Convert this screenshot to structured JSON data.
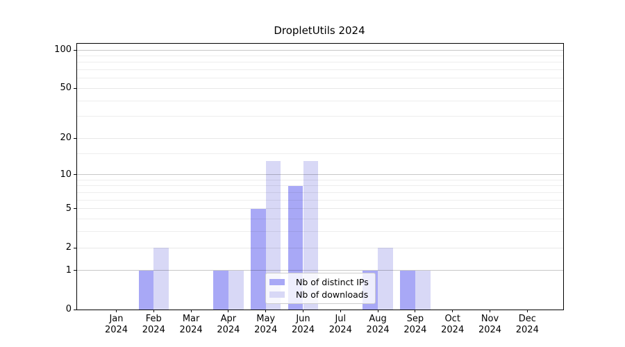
{
  "chart_data": {
    "type": "bar",
    "title": "DropletUtils 2024",
    "categories": [
      "Jan 2024",
      "Feb 2024",
      "Mar 2024",
      "Apr 2024",
      "May 2024",
      "Jun 2024",
      "Jul 2024",
      "Aug 2024",
      "Sep 2024",
      "Oct 2024",
      "Nov 2024",
      "Dec 2024"
    ],
    "series": [
      {
        "key": "distinct-ips",
        "name": "Nb of distinct IPs",
        "color": "#a8a8f6",
        "values": [
          0,
          1,
          0,
          1,
          5,
          8,
          0,
          1,
          1,
          0,
          0,
          0
        ]
      },
      {
        "key": "downloads",
        "name": "Nb of downloads",
        "color": "#d8d8f6",
        "values": [
          0,
          2,
          0,
          1,
          13,
          13,
          0,
          2,
          1,
          0,
          0,
          0
        ]
      }
    ],
    "xlabel": "",
    "ylabel": "",
    "y_axis": {
      "scale": "log1p",
      "tick_labels": [
        0,
        1,
        2,
        5,
        10,
        20,
        50,
        100
      ],
      "minor_gridlines": [
        3,
        4,
        6,
        7,
        8,
        9,
        15,
        30,
        40,
        60,
        70,
        80,
        90
      ],
      "emphasized_gridlines": [
        1,
        10,
        100
      ],
      "min": 0,
      "max": 111
    },
    "legend": {
      "position": "lower-center"
    },
    "grid": true
  }
}
